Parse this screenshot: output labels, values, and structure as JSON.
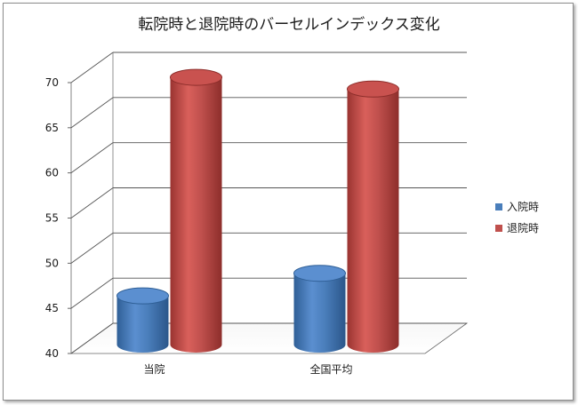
{
  "chart_data": {
    "type": "bar",
    "title": "転院時と退院時のバーセルインデックス変化",
    "categories": [
      "当院",
      "全国平均"
    ],
    "series": [
      {
        "name": "入院時",
        "values": [
          45.3,
          47.8
        ],
        "color": "#4a7ebb"
      },
      {
        "name": "退院時",
        "values": [
          69.5,
          68.2
        ],
        "color": "#c0504d"
      }
    ],
    "ylim": [
      40,
      70
    ],
    "yticks": [
      40,
      45,
      50,
      55,
      60,
      65,
      70
    ],
    "grid": true,
    "legend_position": "right",
    "style": "3d-cylinder"
  }
}
